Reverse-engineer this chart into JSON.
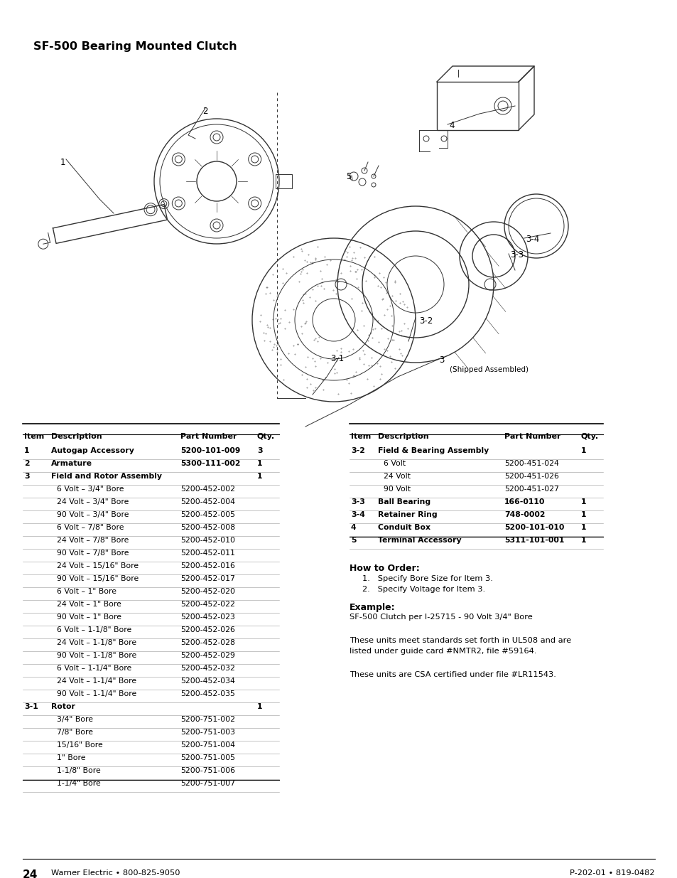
{
  "title": "SF-500 Bearing Mounted Clutch",
  "background_color": "#ffffff",
  "table1_headers": [
    "Item",
    "Description",
    "Part Number",
    "Qty."
  ],
  "table1_rows": [
    [
      "1",
      "Autogap Accessory",
      "5200-101-009",
      "3"
    ],
    [
      "2",
      "Armature",
      "5300-111-002",
      "1"
    ],
    [
      "3",
      "Field and Rotor Assembly",
      "",
      "1"
    ],
    [
      "",
      "6 Volt – 3/4\" Bore",
      "5200-452-002",
      ""
    ],
    [
      "",
      "24 Volt – 3/4\" Bore",
      "5200-452-004",
      ""
    ],
    [
      "",
      "90 Volt – 3/4\" Bore",
      "5200-452-005",
      ""
    ],
    [
      "",
      "6 Volt – 7/8\" Bore",
      "5200-452-008",
      ""
    ],
    [
      "",
      "24 Volt – 7/8\" Bore",
      "5200-452-010",
      ""
    ],
    [
      "",
      "90 Volt – 7/8\" Bore",
      "5200-452-011",
      ""
    ],
    [
      "",
      "24 Volt – 15/16\" Bore",
      "5200-452-016",
      ""
    ],
    [
      "",
      "90 Volt – 15/16\" Bore",
      "5200-452-017",
      ""
    ],
    [
      "",
      "6 Volt – 1\" Bore",
      "5200-452-020",
      ""
    ],
    [
      "",
      "24 Volt – 1\" Bore",
      "5200-452-022",
      ""
    ],
    [
      "",
      "90 Volt – 1\" Bore",
      "5200-452-023",
      ""
    ],
    [
      "",
      "6 Volt – 1-1/8\" Bore",
      "5200-452-026",
      ""
    ],
    [
      "",
      "24 Volt – 1-1/8\" Bore",
      "5200-452-028",
      ""
    ],
    [
      "",
      "90 Volt – 1-1/8\" Bore",
      "5200-452-029",
      ""
    ],
    [
      "",
      "6 Volt – 1-1/4\" Bore",
      "5200-452-032",
      ""
    ],
    [
      "",
      "24 Volt – 1-1/4\" Bore",
      "5200-452-034",
      ""
    ],
    [
      "",
      "90 Volt – 1-1/4\" Bore",
      "5200-452-035",
      ""
    ],
    [
      "3-1",
      "Rotor",
      "",
      "1"
    ],
    [
      "",
      "3/4\" Bore",
      "5200-751-002",
      ""
    ],
    [
      "",
      "7/8\" Bore",
      "5200-751-003",
      ""
    ],
    [
      "",
      "15/16\" Bore",
      "5200-751-004",
      ""
    ],
    [
      "",
      "1\" Bore",
      "5200-751-005",
      ""
    ],
    [
      "",
      "1-1/8\" Bore",
      "5200-751-006",
      ""
    ],
    [
      "",
      "1-1/4\" Bore",
      "5200-751-007",
      ""
    ]
  ],
  "table2_headers": [
    "Item",
    "Description",
    "Part Number",
    "Qty."
  ],
  "table2_rows": [
    [
      "3-2",
      "Field & Bearing Assembly",
      "",
      "1"
    ],
    [
      "",
      "6 Volt",
      "5200-451-024",
      ""
    ],
    [
      "",
      "24 Volt",
      "5200-451-026",
      ""
    ],
    [
      "",
      "90 Volt",
      "5200-451-027",
      ""
    ],
    [
      "3-3",
      "Ball Bearing",
      "166-0110",
      "1"
    ],
    [
      "3-4",
      "Retainer Ring",
      "748-0002",
      "1"
    ],
    [
      "4",
      "Conduit Box",
      "5200-101-010",
      "1"
    ],
    [
      "5",
      "Terminal Accessory",
      "5311-101-001",
      "1"
    ]
  ],
  "how_to_order_title": "How to Order:",
  "how_to_order_items": [
    "Specify Bore Size for Item 3.",
    "Specify Voltage for Item 3."
  ],
  "example_title": "Example:",
  "example_text": "SF-500 Clutch per I-25715 - 90 Volt 3/4\" Bore",
  "ul_text": "These units meet standards set forth in UL508 and are\nlisted under guide card #NMTR2, file #59164.",
  "csa_text": "These units are CSA certified under file #LR11543.",
  "footer_left_num": "24",
  "footer_left_text": "Warner Electric • 800-825-9050",
  "footer_right": "P-202-01 • 819-0482",
  "table1_bold_rows": [
    0,
    1,
    2,
    20
  ],
  "table2_bold_rows": [
    0,
    4,
    5,
    6,
    7
  ],
  "diagram_label_1": "1",
  "diagram_label_2": "2",
  "diagram_label_3": "3",
  "diagram_label_31": "3-1",
  "diagram_label_32": "3-2",
  "diagram_label_33": "3-3",
  "diagram_label_34": "3-4",
  "diagram_label_4": "4",
  "diagram_label_5": "5",
  "diagram_shipped": "(Shipped Assembled)"
}
